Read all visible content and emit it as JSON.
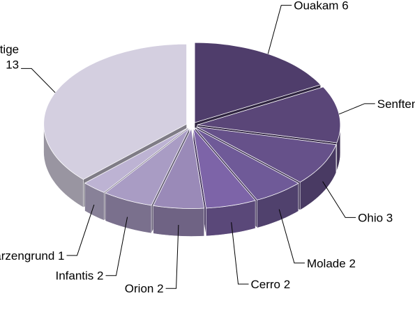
{
  "chart_data": {
    "type": "pie",
    "categories": [
      "Ouakam",
      "Senftenberg",
      "Ohio",
      "Molade",
      "Cerro",
      "Orion",
      "Infantis",
      "Schwarzengrund",
      "Sonstige"
    ],
    "values": [
      6,
      4,
      3,
      2,
      2,
      2,
      2,
      1,
      13
    ],
    "colors": [
      "#4f3d6b",
      "#5a4678",
      "#66518a",
      "#6f5a98",
      "#7d64a8",
      "#9a8ab8",
      "#a99cc4",
      "#bdb3d3",
      "#d4cfe0"
    ]
  }
}
